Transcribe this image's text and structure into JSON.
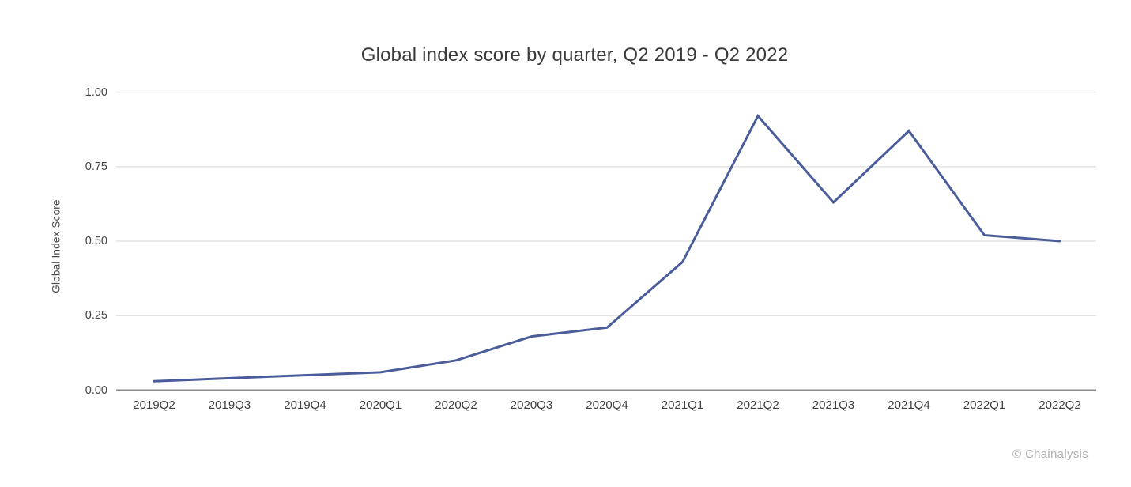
{
  "page": {
    "background_color": "#ffffff"
  },
  "chart_data": {
    "type": "line",
    "title": "Global index score by quarter, Q2 2019 - Q2 2022",
    "ylabel": "Global Index Score",
    "xlabel": "",
    "categories": [
      "2019Q2",
      "2019Q3",
      "2019Q4",
      "2020Q1",
      "2020Q2",
      "2020Q3",
      "2020Q4",
      "2021Q1",
      "2021Q2",
      "2021Q3",
      "2021Q4",
      "2022Q1",
      "2022Q2"
    ],
    "series": [
      {
        "name": "Global index score",
        "values": [
          0.03,
          0.04,
          0.05,
          0.06,
          0.1,
          0.18,
          0.21,
          0.43,
          0.92,
          0.63,
          0.87,
          0.52,
          0.5
        ]
      }
    ],
    "yticks": [
      0,
      0.25,
      0.5,
      0.75,
      1.0
    ],
    "ytick_labels": [
      "0.00",
      "0.25",
      "0.50",
      "0.75",
      "1.00"
    ],
    "ylim": [
      0,
      1
    ],
    "grid": true,
    "legend_position": "none",
    "colors": {
      "line": "#4b5c9b",
      "gridline": "#e4e4e4",
      "axis_line": "#8f8f8f",
      "title_text": "#3a3a3a",
      "tick_text": "#454545",
      "credit_text": "#b1b1b1"
    },
    "credit": "© Chainalysis"
  }
}
